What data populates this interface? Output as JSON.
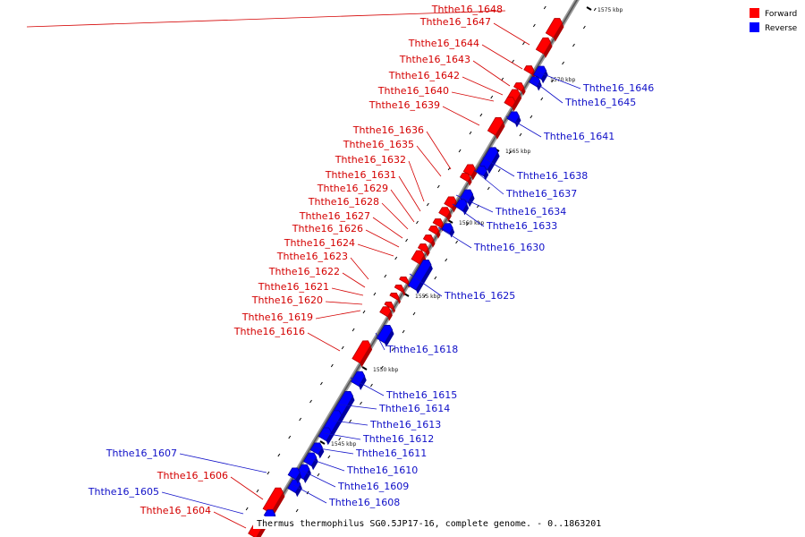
{
  "caption": "Thermus thermophilus SG0.5JP17-16, complete genome. - 0..1863201",
  "legend": [
    {
      "label": "Forward",
      "color": "#ff0000"
    },
    {
      "label": "Reverse",
      "color": "#0000ff"
    }
  ],
  "colors": {
    "forward": "#ff0000",
    "forward_dark": "#b00000",
    "reverse": "#0000ff",
    "reverse_dark": "#0000a0",
    "axis": "#777777",
    "forward_label": "#d40000",
    "reverse_label": "#1010c8"
  },
  "scale_marks": [
    "1575 kbp",
    "1570 kbp",
    "1565 kbp",
    "1560 kbp",
    "1555 kbp",
    "1550 kbp",
    "1545 kbp"
  ],
  "forward_genes": [
    "Ththe16_1648",
    "Ththe16_1647",
    "Ththe16_1644",
    "Ththe16_1643",
    "Ththe16_1642",
    "Ththe16_1640",
    "Ththe16_1639",
    "Ththe16_1636",
    "Ththe16_1635",
    "Ththe16_1632",
    "Ththe16_1631",
    "Ththe16_1629",
    "Ththe16_1628",
    "Ththe16_1627",
    "Ththe16_1626",
    "Ththe16_1624",
    "Ththe16_1623",
    "Ththe16_1622",
    "Ththe16_1621",
    "Ththe16_1620",
    "Ththe16_1619",
    "Ththe16_1616",
    "Ththe16_1606",
    "Ththe16_1604"
  ],
  "reverse_genes": [
    "Ththe16_1646",
    "Ththe16_1645",
    "Ththe16_1641",
    "Ththe16_1638",
    "Ththe16_1637",
    "Ththe16_1634",
    "Ththe16_1633",
    "Ththe16_1630",
    "Ththe16_1625",
    "Ththe16_1618",
    "Ththe16_1615",
    "Ththe16_1614",
    "Ththe16_1613",
    "Ththe16_1612",
    "Ththe16_1611",
    "Ththe16_1610",
    "Ththe16_1609",
    "Ththe16_1608",
    "Ththe16_1607",
    "Ththe16_1605"
  ]
}
